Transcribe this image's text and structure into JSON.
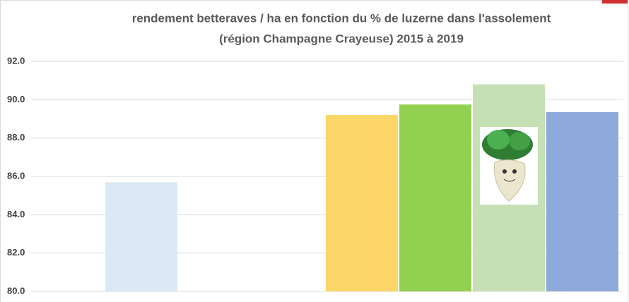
{
  "chart_data": {
    "type": "bar",
    "title": [
      "rendement betteraves / ha en fonction du % de luzerne dans l'assolement",
      "(région Champagne Crayeuse) 2015 à 2019"
    ],
    "categories": [
      null,
      null,
      null,
      null,
      null,
      null,
      null,
      null
    ],
    "values": [
      null,
      85.7,
      null,
      null,
      89.2,
      89.75,
      90.8,
      89.35
    ],
    "colors": [
      null,
      "#dde8f5",
      null,
      null,
      "#fbd567",
      "#92d050",
      "#c5e0b4",
      "#8eaadb"
    ],
    "ylim": [
      80,
      92
    ],
    "yticks": [
      {
        "value": 80,
        "label": "80.0"
      },
      {
        "value": 82,
        "label": "82.0"
      },
      {
        "value": 84,
        "label": "84.0"
      },
      {
        "value": 86,
        "label": "86.0"
      },
      {
        "value": 88,
        "label": "88.0"
      },
      {
        "value": 90,
        "label": "90.0"
      },
      {
        "value": 92,
        "label": "92.0"
      }
    ],
    "grid": true
  }
}
